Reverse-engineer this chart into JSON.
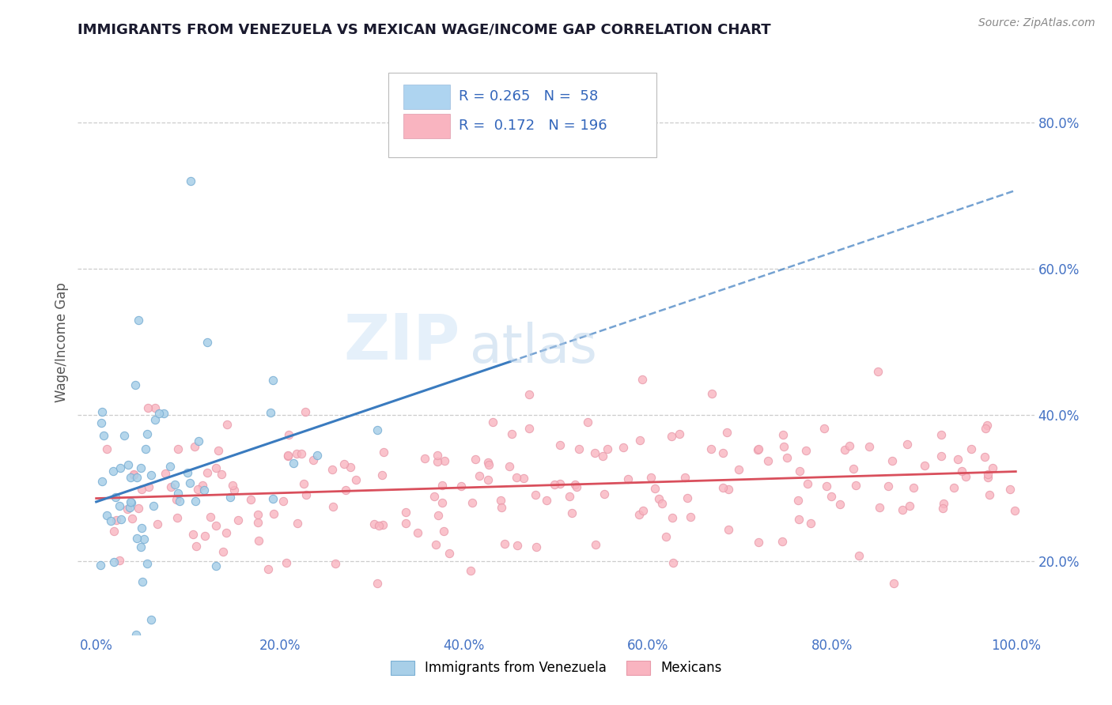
{
  "title": "IMMIGRANTS FROM VENEZUELA VS MEXICAN WAGE/INCOME GAP CORRELATION CHART",
  "source_text": "Source: ZipAtlas.com",
  "ylabel": "Wage/Income Gap",
  "xlim": [
    -0.02,
    1.02
  ],
  "ylim": [
    0.1,
    0.9
  ],
  "xtick_labels": [
    "0.0%",
    "20.0%",
    "40.0%",
    "60.0%",
    "80.0%",
    "100.0%"
  ],
  "xtick_vals": [
    0.0,
    0.2,
    0.4,
    0.6,
    0.8,
    1.0
  ],
  "ytick_labels": [
    "20.0%",
    "40.0%",
    "60.0%",
    "80.0%"
  ],
  "ytick_vals": [
    0.2,
    0.4,
    0.6,
    0.8
  ],
  "series1_label": "Immigrants from Venezuela",
  "series2_label": "Mexicans",
  "series1_color": "#a8cfe8",
  "series2_color": "#f9b4c0",
  "series1_line_color": "#3a7bbf",
  "series2_line_color": "#d94f5c",
  "R1": 0.265,
  "N1": 58,
  "R2": 0.172,
  "N2": 196,
  "legend_box_color1": "#aed4f0",
  "legend_box_color2": "#f9b4c0",
  "watermark_zip": "ZIP",
  "watermark_atlas": "atlas",
  "background_color": "#ffffff",
  "grid_color": "#cccccc",
  "title_color": "#1a1a2e",
  "tick_color": "#4472c4",
  "axis_label_color": "#555555"
}
